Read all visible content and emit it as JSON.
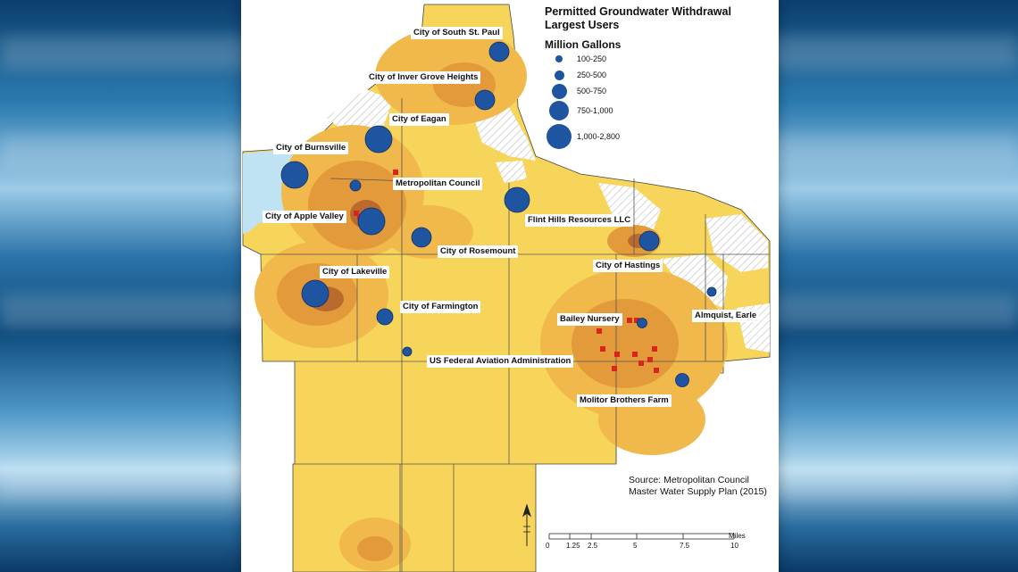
{
  "legend": {
    "title_line1": "Permitted Groundwater Withdrawal",
    "title_line2": "Largest Users",
    "unit": "Million Gallons",
    "sizes": [
      "100-250",
      "250-500",
      "500-750",
      "750-1,000",
      "1,000-2,800"
    ]
  },
  "users": [
    {
      "label": "City of South St. Paul"
    },
    {
      "label": "City of Inver Grove Heights"
    },
    {
      "label": "City of Eagan"
    },
    {
      "label": "City of Burnsville"
    },
    {
      "label": "Metropolitan Council"
    },
    {
      "label": "City of Apple Valley"
    },
    {
      "label": "Flint Hills Resources LLC"
    },
    {
      "label": "City of Rosemount"
    },
    {
      "label": "City of Hastings"
    },
    {
      "label": "City of Lakeville"
    },
    {
      "label": "City of Farmington"
    },
    {
      "label": "Bailey Nursery"
    },
    {
      "label": "Almquist, Earle"
    },
    {
      "label": "US Federal Aviation Administration"
    },
    {
      "label": "Molitor Brothers Farm"
    }
  ],
  "source": {
    "line1": "Source: Metropolitan Council",
    "line2": "Master Water Supply Plan (2015)"
  },
  "scale": {
    "unit": "Miles",
    "ticks": [
      "0",
      "1.25",
      "2.5",
      "5",
      "7.5",
      "10"
    ]
  },
  "colors": {
    "base_yellow": "#f6d55a",
    "light_orange": "#f1b84c",
    "orange": "#e39a3a",
    "dark": "#b96a2c",
    "water": "#bfe3f2",
    "symbol": "#1f54a0",
    "well": "#d7261e"
  }
}
